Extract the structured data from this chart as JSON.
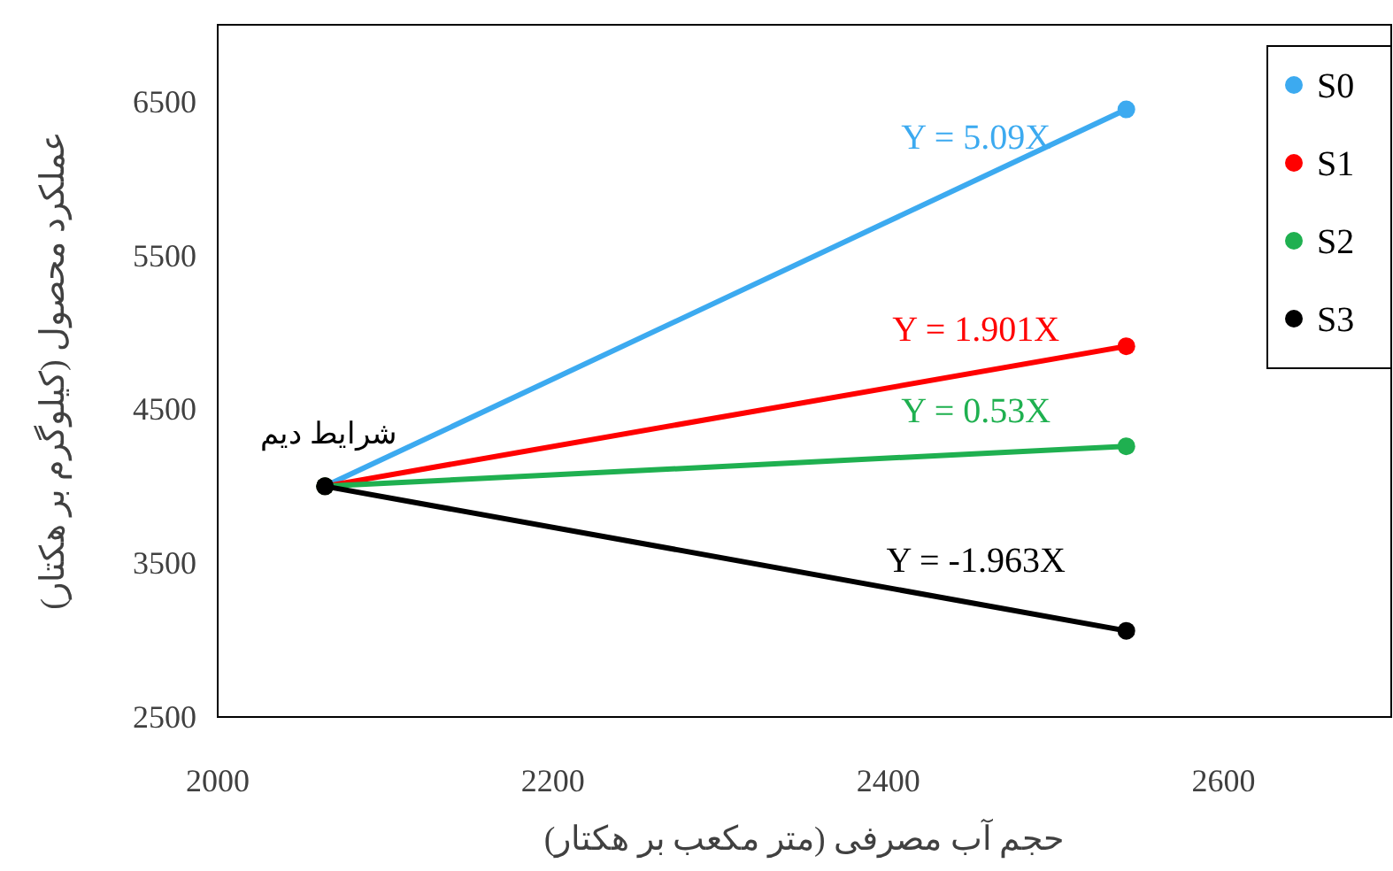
{
  "chart_data": {
    "type": "line",
    "xlabel": "حجم آب مصرفی (متر مکعب بر هکتار)",
    "ylabel": "عملکرد محصول (کیلوگرم بر هکتار)",
    "xlim": [
      2000,
      2700
    ],
    "xticks": [
      2000,
      2200,
      2400,
      2600
    ],
    "ylim": [
      2500,
      7000
    ],
    "yticks": [
      2500,
      3500,
      4500,
      5500,
      6500
    ],
    "grid": false,
    "legend": "top right",
    "marker": "circle",
    "line_style": "solid",
    "x": [
      2064,
      2542
    ],
    "series": [
      {
        "name": "S0",
        "color": "#3caaf0",
        "values": [
          4000,
          6450
        ]
      },
      {
        "name": "S1",
        "color": "#ff0000",
        "values": [
          4000,
          4910
        ]
      },
      {
        "name": "S2",
        "color": "#1fb050",
        "values": [
          4000,
          4260
        ]
      },
      {
        "name": "S3",
        "color": "#000000",
        "values": [
          4000,
          3060
        ]
      }
    ],
    "annotations": [
      "Y = 5.09X",
      "Y = 1.901X",
      "Y = 0.53X",
      "Y = -1.963X",
      "شرایط دیم"
    ]
  }
}
